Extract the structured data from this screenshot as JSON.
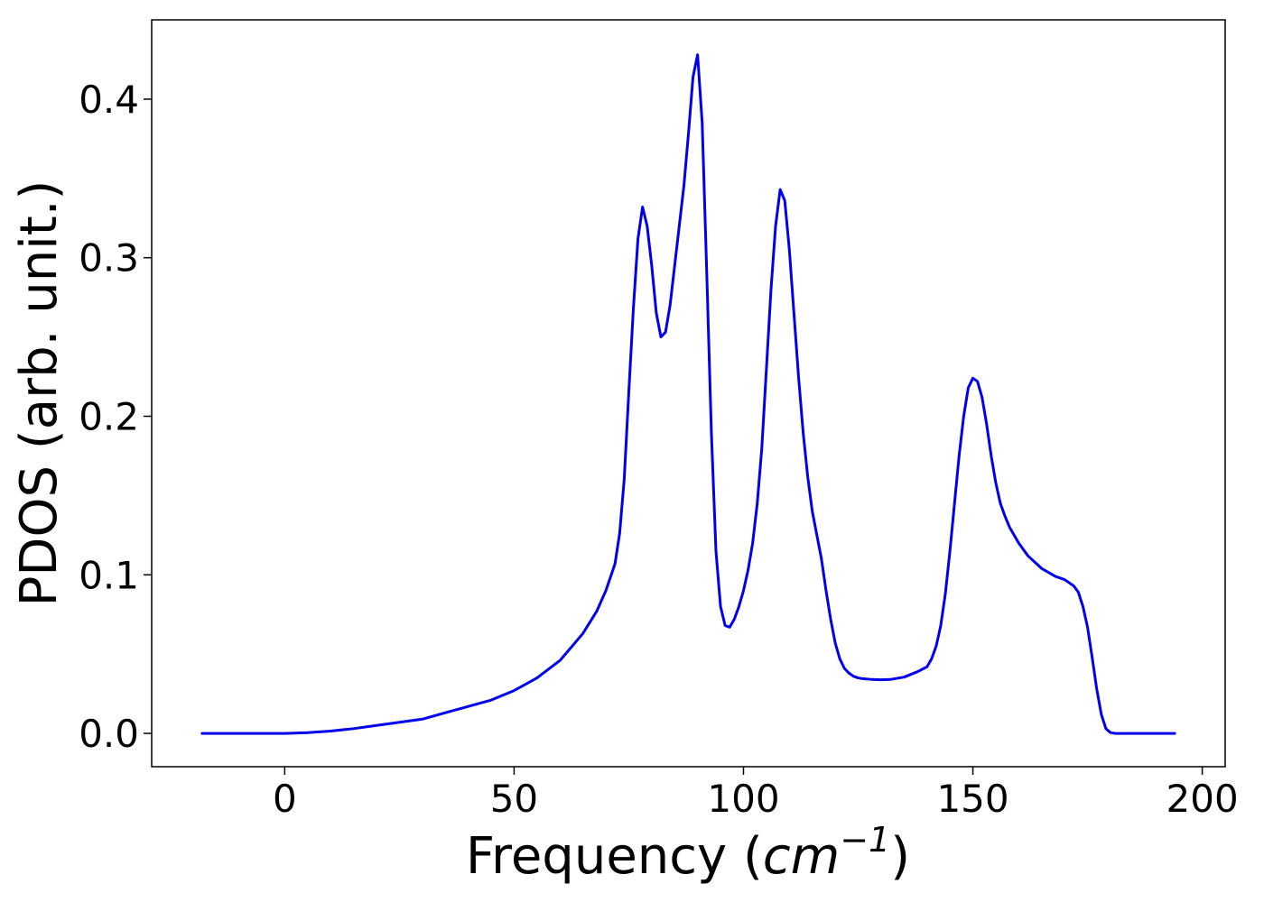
{
  "chart_data": {
    "type": "line",
    "title": "",
    "xlabel": "Frequency",
    "xlabel_unit": "cm",
    "xlabel_unit_exp": "−1",
    "ylabel": "PDOS (arb. unit.)",
    "xlim": [
      -29,
      205
    ],
    "ylim": [
      -0.021,
      0.45
    ],
    "xticks": [
      0,
      50,
      100,
      150,
      200
    ],
    "xtick_labels": [
      "0",
      "50",
      "100",
      "150",
      "200"
    ],
    "yticks": [
      0.0,
      0.1,
      0.2,
      0.3,
      0.4
    ],
    "ytick_labels": [
      "0.0",
      "0.1",
      "0.2",
      "0.3",
      "0.4"
    ],
    "grid": false,
    "series": [
      {
        "color": "#0000ee",
        "x": [
          -18,
          0,
          5,
          10,
          15,
          20,
          25,
          30,
          35,
          40,
          45,
          50,
          55,
          60,
          65,
          68,
          70,
          72,
          73,
          74,
          75,
          76,
          77,
          78,
          79,
          80,
          81,
          82,
          83,
          84,
          85,
          86,
          87,
          88,
          89,
          90,
          91,
          92,
          93,
          94,
          95,
          96,
          97,
          98,
          99,
          100,
          101,
          102,
          103,
          104,
          105,
          106,
          107,
          108,
          109,
          110,
          111,
          112,
          113,
          114,
          115,
          116,
          117,
          118,
          119,
          120,
          121,
          122,
          123,
          124,
          125,
          126,
          128,
          130,
          132,
          135,
          138,
          140,
          141,
          142,
          143,
          144,
          145,
          146,
          147,
          148,
          149,
          150,
          151,
          152,
          153,
          154,
          155,
          156,
          157,
          158,
          160,
          162,
          165,
          168,
          170,
          172,
          173,
          174,
          175,
          176,
          177,
          178,
          179,
          180,
          181,
          182,
          185,
          190,
          194
        ],
        "y": [
          0.0,
          0.0,
          0.0005,
          0.0015,
          0.003,
          0.005,
          0.007,
          0.009,
          0.013,
          0.017,
          0.021,
          0.027,
          0.035,
          0.046,
          0.063,
          0.077,
          0.09,
          0.107,
          0.126,
          0.16,
          0.215,
          0.268,
          0.312,
          0.332,
          0.32,
          0.295,
          0.265,
          0.25,
          0.253,
          0.27,
          0.295,
          0.32,
          0.345,
          0.378,
          0.414,
          0.428,
          0.385,
          0.29,
          0.19,
          0.115,
          0.08,
          0.068,
          0.067,
          0.072,
          0.08,
          0.09,
          0.103,
          0.12,
          0.145,
          0.18,
          0.23,
          0.28,
          0.32,
          0.343,
          0.336,
          0.305,
          0.265,
          0.225,
          0.19,
          0.162,
          0.14,
          0.125,
          0.11,
          0.09,
          0.072,
          0.057,
          0.047,
          0.041,
          0.038,
          0.036,
          0.035,
          0.0345,
          0.034,
          0.0338,
          0.034,
          0.0355,
          0.039,
          0.042,
          0.047,
          0.055,
          0.068,
          0.088,
          0.115,
          0.145,
          0.175,
          0.2,
          0.218,
          0.224,
          0.222,
          0.212,
          0.195,
          0.175,
          0.158,
          0.145,
          0.137,
          0.13,
          0.12,
          0.112,
          0.104,
          0.099,
          0.097,
          0.093,
          0.089,
          0.08,
          0.067,
          0.048,
          0.028,
          0.012,
          0.003,
          0.0005,
          0.0,
          0.0,
          0.0,
          0.0,
          0.0
        ]
      }
    ]
  }
}
